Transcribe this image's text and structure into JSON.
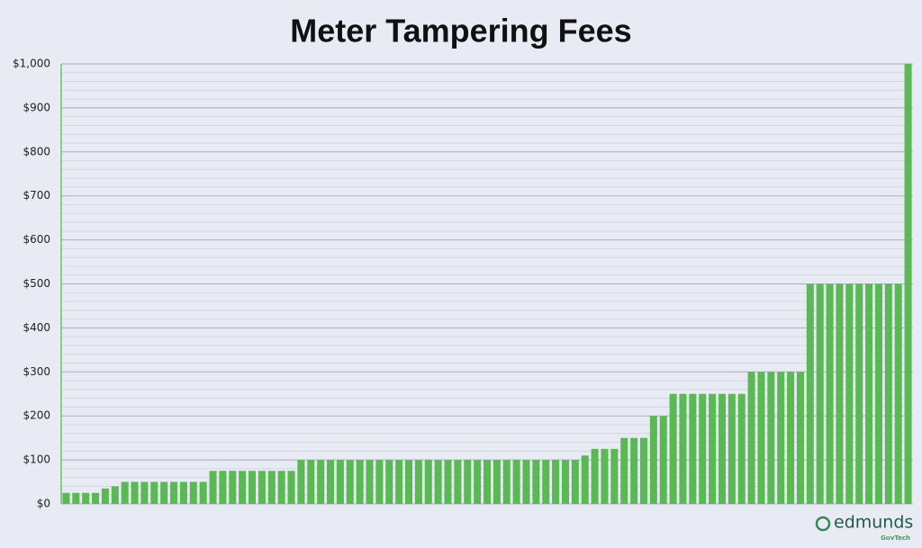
{
  "chart_data": {
    "type": "bar",
    "title": "Meter Tampering Fees",
    "categories": [
      null,
      null,
      null,
      null,
      null,
      null,
      null,
      null,
      null,
      null,
      null,
      null,
      null,
      null,
      null,
      null,
      null,
      null,
      null,
      null,
      null,
      null,
      null,
      null,
      null,
      null,
      null,
      null,
      null,
      null,
      null,
      null,
      null,
      null,
      null,
      null,
      null,
      null,
      null,
      null,
      null,
      null,
      null,
      null,
      null,
      null,
      null,
      null,
      null,
      null,
      null,
      null,
      null,
      null,
      null,
      null,
      null,
      null,
      null,
      null,
      null,
      null,
      null,
      null,
      null,
      null,
      null,
      null,
      null,
      null,
      null,
      null,
      null,
      null,
      null,
      null,
      null,
      null,
      null,
      null,
      null,
      null,
      null,
      null,
      null,
      null,
      null
    ],
    "values": [
      25,
      25,
      25,
      25,
      35,
      40,
      50,
      50,
      50,
      50,
      50,
      50,
      50,
      50,
      50,
      75,
      75,
      75,
      75,
      75,
      75,
      75,
      75,
      75,
      100,
      100,
      100,
      100,
      100,
      100,
      100,
      100,
      100,
      100,
      100,
      100,
      100,
      100,
      100,
      100,
      100,
      100,
      100,
      100,
      100,
      100,
      100,
      100,
      100,
      100,
      100,
      100,
      100,
      110,
      125,
      125,
      125,
      150,
      150,
      150,
      200,
      200,
      250,
      250,
      250,
      250,
      250,
      250,
      250,
      250,
      300,
      300,
      300,
      300,
      300,
      300,
      500,
      500,
      500,
      500,
      500,
      500,
      500,
      500,
      500,
      500,
      1000
    ],
    "color": "#5bb955",
    "ylim": [
      0,
      1000
    ],
    "yticks": [
      {
        "value": 0,
        "label": "$0"
      },
      {
        "value": 100,
        "label": "$100"
      },
      {
        "value": 200,
        "label": "$200"
      },
      {
        "value": 300,
        "label": "$300"
      },
      {
        "value": 400,
        "label": "$400"
      },
      {
        "value": 500,
        "label": "$500"
      },
      {
        "value": 600,
        "label": "$600"
      },
      {
        "value": 700,
        "label": "$700"
      },
      {
        "value": 800,
        "label": "$800"
      },
      {
        "value": 900,
        "label": "$900"
      },
      {
        "value": 1000,
        "label": "$1,000"
      }
    ],
    "minor_yticks": [
      20,
      40,
      60,
      80,
      120,
      140,
      160,
      180,
      220,
      240,
      260,
      280,
      320,
      340,
      360,
      380,
      420,
      440,
      460,
      480,
      520,
      540,
      560,
      580,
      620,
      640,
      660,
      680,
      720,
      740,
      760,
      780,
      820,
      840,
      860,
      880,
      920,
      940,
      960,
      980
    ],
    "grid": true,
    "logo": "edmunds",
    "logo_sub": "GovTech"
  }
}
